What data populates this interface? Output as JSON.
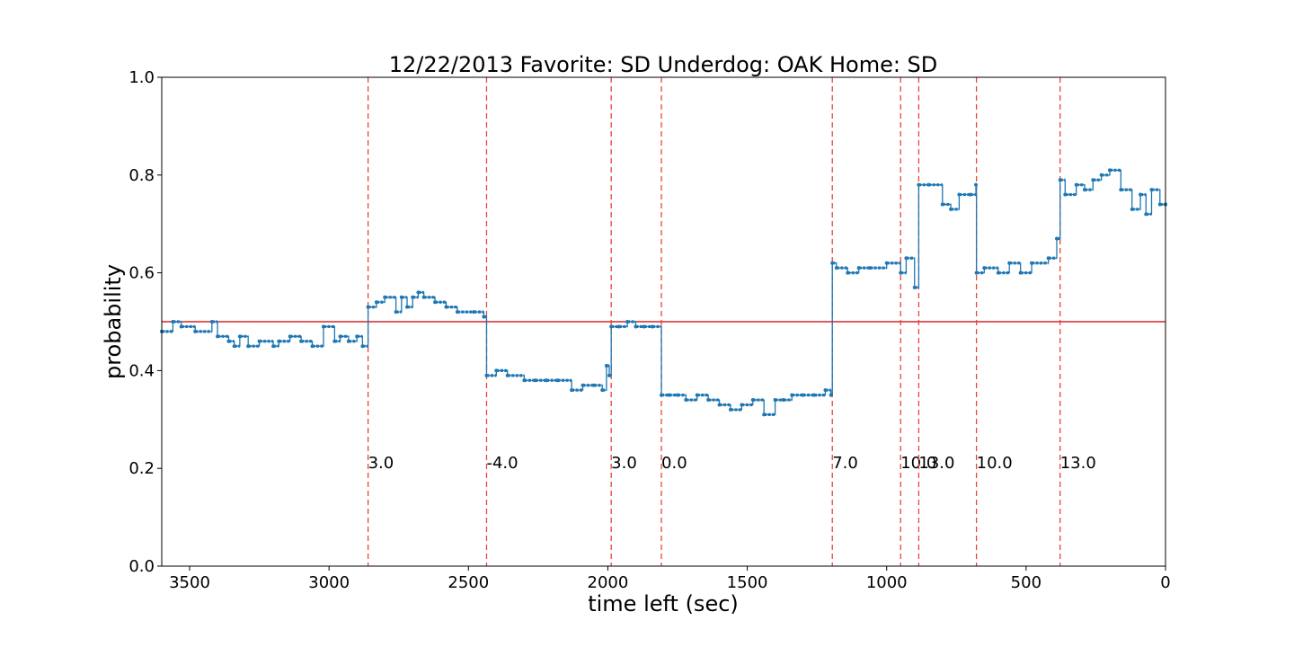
{
  "chart_data": {
    "type": "line",
    "title": "12/22/2013 Favorite: SD Underdog: OAK Home: SD",
    "xlabel": "time left (sec)",
    "ylabel": "probability",
    "xlim": [
      3600,
      0
    ],
    "ylim": [
      0,
      1
    ],
    "x_ticks": [
      3500,
      3000,
      2500,
      2000,
      1500,
      1000,
      500,
      0
    ],
    "y_ticks": [
      "0.0",
      "0.2",
      "0.4",
      "0.6",
      "0.8",
      "1.0"
    ],
    "grid": false,
    "reference_line": {
      "y": 0.5,
      "color": "#d62728"
    },
    "scoring_events": [
      {
        "x": 2860,
        "label": "3.0"
      },
      {
        "x": 2435,
        "label": "-4.0"
      },
      {
        "x": 1988,
        "label": "3.0"
      },
      {
        "x": 1808,
        "label": "0.0"
      },
      {
        "x": 1195,
        "label": "7.0"
      },
      {
        "x": 950,
        "label": "10.0"
      },
      {
        "x": 885,
        "label": "13.0"
      },
      {
        "x": 678,
        "label": "10.0"
      },
      {
        "x": 378,
        "label": "13.0"
      }
    ],
    "series": [
      {
        "color": "#1f77b4",
        "style": "step-with-markers",
        "x": [
          3600,
          3560,
          3530,
          3480,
          3420,
          3400,
          3360,
          3340,
          3320,
          3290,
          3250,
          3200,
          3180,
          3140,
          3100,
          3060,
          3020,
          2980,
          2960,
          2930,
          2900,
          2880,
          2860,
          2830,
          2800,
          2760,
          2740,
          2720,
          2700,
          2680,
          2660,
          2620,
          2580,
          2540,
          2480,
          2445,
          2435,
          2400,
          2360,
          2300,
          2260,
          2220,
          2180,
          2130,
          2090,
          2050,
          2020,
          2005,
          1995,
          1988,
          1960,
          1930,
          1900,
          1870,
          1840,
          1808,
          1780,
          1750,
          1720,
          1680,
          1640,
          1600,
          1560,
          1520,
          1480,
          1440,
          1400,
          1370,
          1340,
          1300,
          1260,
          1220,
          1200,
          1195,
          1180,
          1140,
          1100,
          1060,
          1000,
          950,
          930,
          900,
          885,
          850,
          800,
          770,
          740,
          700,
          680,
          678,
          650,
          600,
          560,
          520,
          480,
          420,
          390,
          378,
          360,
          320,
          290,
          260,
          230,
          200,
          160,
          120,
          90,
          70,
          50,
          20,
          0
        ],
        "y": [
          0.48,
          0.5,
          0.49,
          0.48,
          0.5,
          0.47,
          0.46,
          0.45,
          0.47,
          0.45,
          0.46,
          0.45,
          0.46,
          0.47,
          0.46,
          0.45,
          0.49,
          0.46,
          0.47,
          0.46,
          0.47,
          0.45,
          0.53,
          0.54,
          0.55,
          0.52,
          0.55,
          0.53,
          0.55,
          0.56,
          0.55,
          0.54,
          0.53,
          0.52,
          0.52,
          0.51,
          0.39,
          0.4,
          0.39,
          0.38,
          0.38,
          0.38,
          0.38,
          0.36,
          0.37,
          0.37,
          0.36,
          0.41,
          0.39,
          0.49,
          0.49,
          0.5,
          0.49,
          0.49,
          0.49,
          0.35,
          0.35,
          0.35,
          0.34,
          0.35,
          0.34,
          0.33,
          0.32,
          0.33,
          0.34,
          0.31,
          0.34,
          0.34,
          0.35,
          0.35,
          0.35,
          0.36,
          0.35,
          0.62,
          0.61,
          0.6,
          0.61,
          0.61,
          0.62,
          0.6,
          0.63,
          0.57,
          0.78,
          0.78,
          0.74,
          0.73,
          0.76,
          0.76,
          0.78,
          0.6,
          0.61,
          0.6,
          0.62,
          0.6,
          0.62,
          0.63,
          0.67,
          0.79,
          0.76,
          0.78,
          0.77,
          0.79,
          0.8,
          0.81,
          0.77,
          0.73,
          0.76,
          0.72,
          0.77,
          0.74,
          0.74
        ]
      }
    ]
  }
}
